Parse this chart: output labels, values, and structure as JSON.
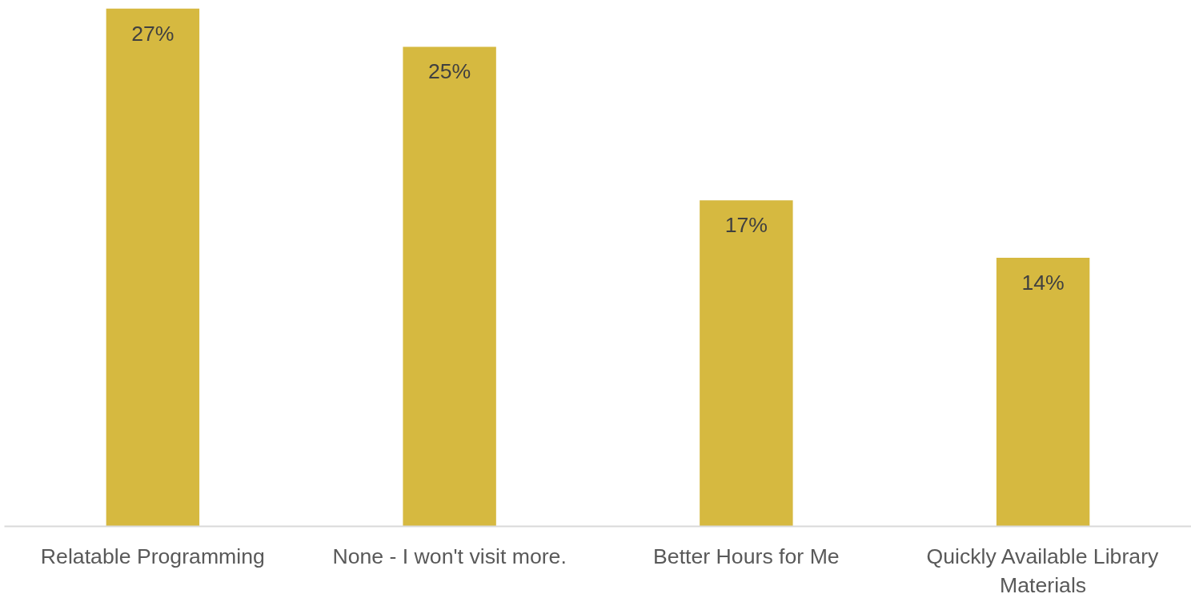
{
  "chart_data": {
    "type": "bar",
    "categories": [
      "Relatable Programming",
      "None - I won't visit more.",
      "Better Hours for Me",
      "Quickly Available Library Materials"
    ],
    "values": [
      27,
      25,
      17,
      14
    ],
    "value_labels": [
      "27%",
      "25%",
      "17%",
      "14%"
    ],
    "color": "#d6b940",
    "grid": false
  }
}
